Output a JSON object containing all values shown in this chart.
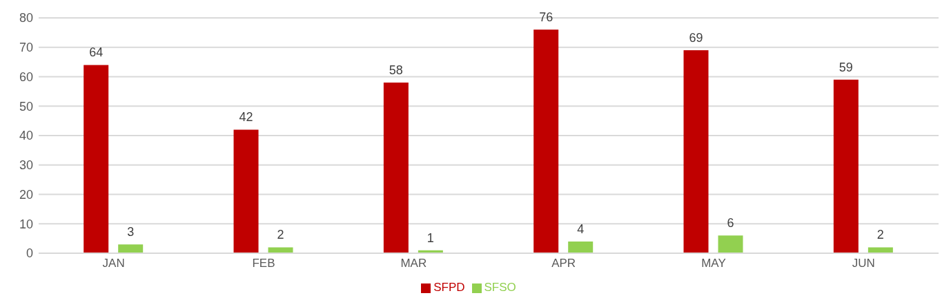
{
  "chart_data": {
    "type": "bar",
    "categories": [
      "JAN",
      "FEB",
      "MAR",
      "APR",
      "MAY",
      "JUN"
    ],
    "series": [
      {
        "name": "SFPD",
        "color": "#c00000",
        "values": [
          64,
          42,
          58,
          76,
          69,
          59
        ]
      },
      {
        "name": "SFSO",
        "color": "#92d050",
        "values": [
          3,
          2,
          1,
          4,
          6,
          2
        ]
      }
    ],
    "ylim": [
      0,
      80
    ],
    "yticks": [
      0,
      10,
      20,
      30,
      40,
      50,
      60,
      70,
      80
    ],
    "grid": "y",
    "legend": "bottom",
    "data_labels": true
  }
}
